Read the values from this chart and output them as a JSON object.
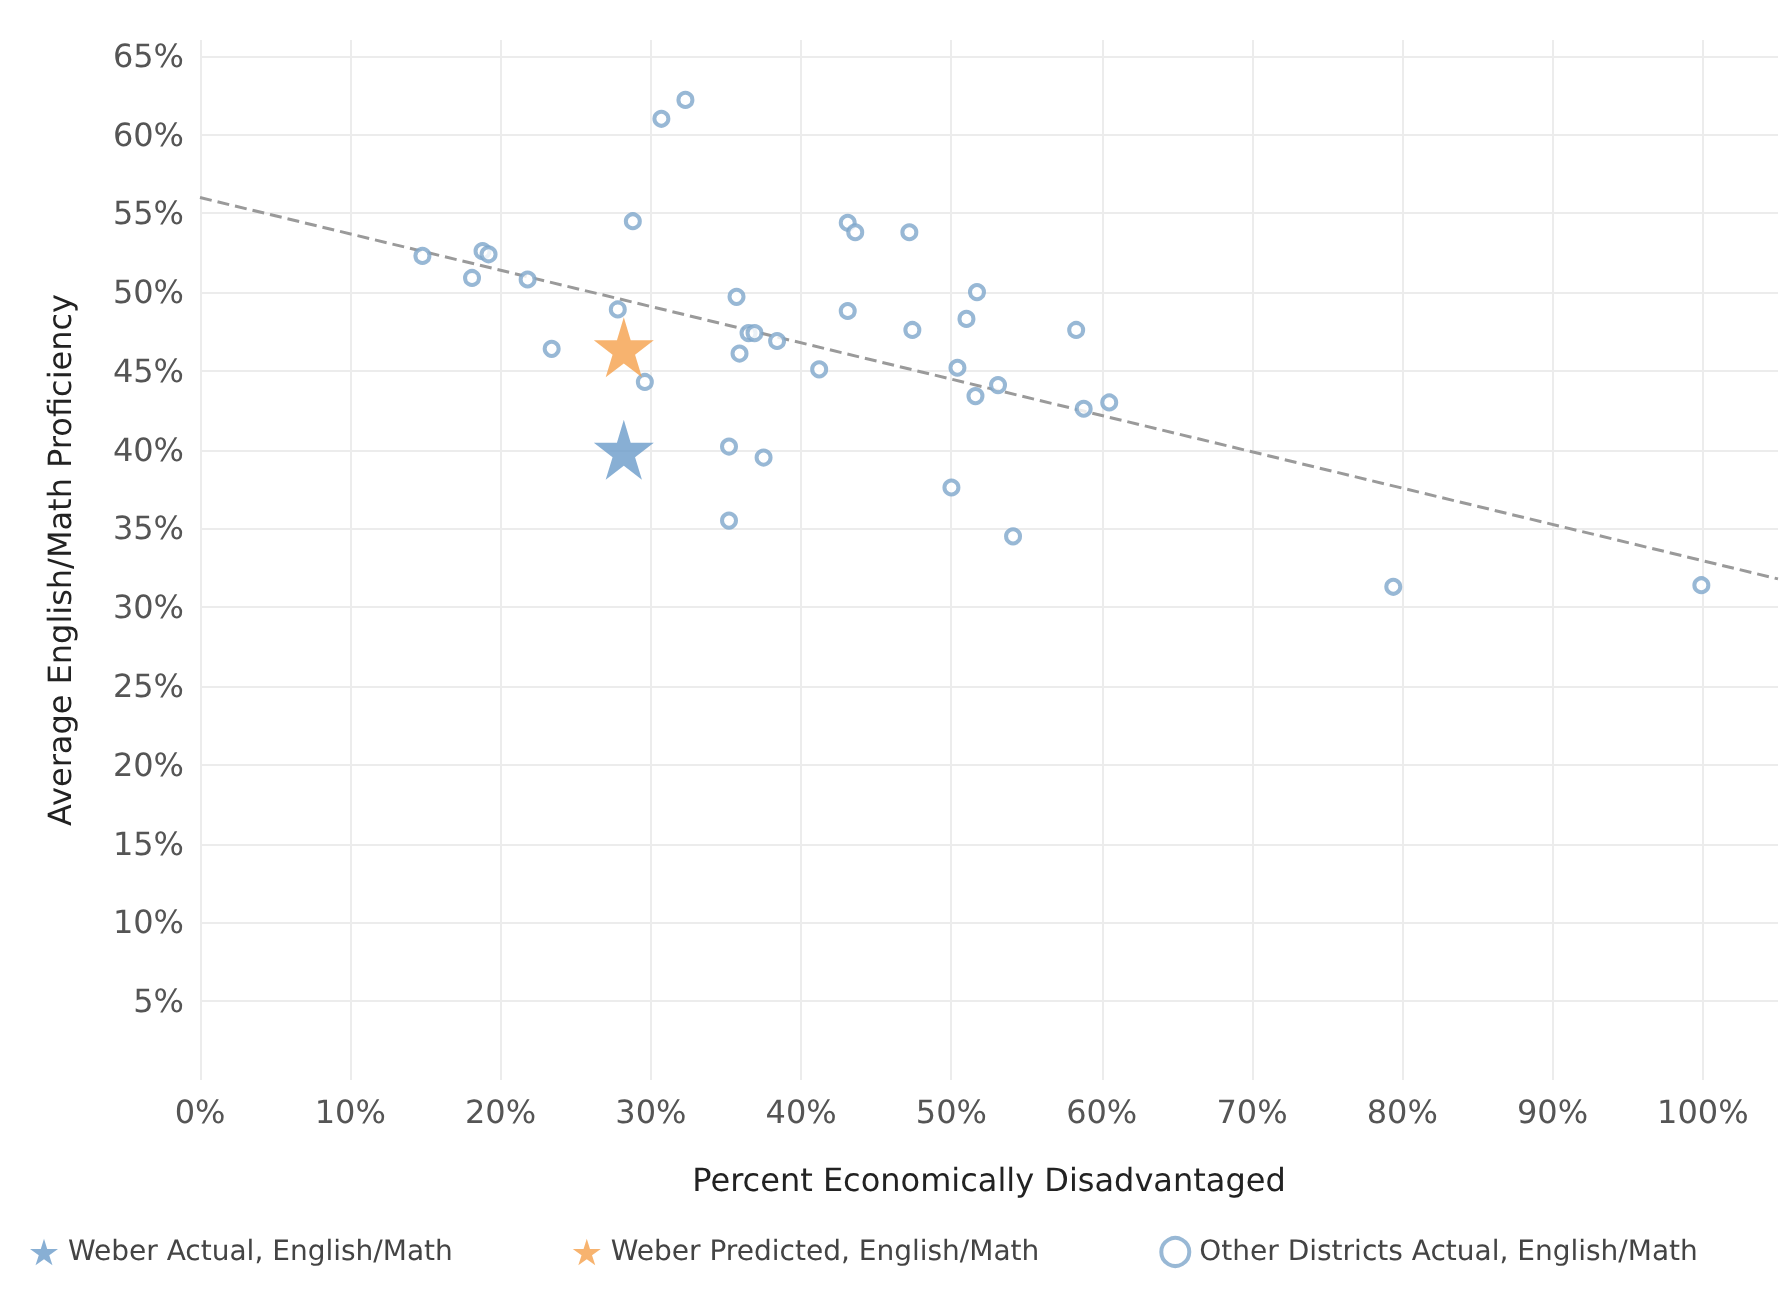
{
  "chart_data": {
    "type": "scatter",
    "xlabel": "Percent Economically Disadvantaged",
    "ylabel": "Average English/Math Proficiency",
    "xlim": [
      0,
      105
    ],
    "ylim": [
      0,
      66
    ],
    "xticks": [
      {
        "value": 0,
        "label": "0%"
      },
      {
        "value": 10,
        "label": "10%"
      },
      {
        "value": 20,
        "label": "20%"
      },
      {
        "value": 30,
        "label": "30%"
      },
      {
        "value": 40,
        "label": "40%"
      },
      {
        "value": 50,
        "label": "50%"
      },
      {
        "value": 60,
        "label": "60%"
      },
      {
        "value": 70,
        "label": "70%"
      },
      {
        "value": 80,
        "label": "80%"
      },
      {
        "value": 90,
        "label": "90%"
      },
      {
        "value": 100,
        "label": "100%"
      }
    ],
    "yticks": [
      {
        "value": 5,
        "label": "5%"
      },
      {
        "value": 10,
        "label": "10%"
      },
      {
        "value": 15,
        "label": "15%"
      },
      {
        "value": 20,
        "label": "20%"
      },
      {
        "value": 25,
        "label": "25%"
      },
      {
        "value": 30,
        "label": "30%"
      },
      {
        "value": 35,
        "label": "35%"
      },
      {
        "value": 40,
        "label": "40%"
      },
      {
        "value": 45,
        "label": "45%"
      },
      {
        "value": 50,
        "label": "50%"
      },
      {
        "value": 55,
        "label": "55%"
      },
      {
        "value": 60,
        "label": "60%"
      },
      {
        "value": 65,
        "label": "65%"
      }
    ],
    "grid": true,
    "legend": "bottom",
    "series": [
      {
        "name": "Weber Actual, English/Math",
        "color": "#6a9bc9",
        "marker": "star",
        "x": [
          28.2
        ],
        "values": [
          40.0
        ]
      },
      {
        "name": "Weber Predicted, English/Math",
        "color": "#f5a04b",
        "marker": "star",
        "x": [
          28.2
        ],
        "values": [
          46.5
        ]
      },
      {
        "name": "Other Districts Actual, English/Math",
        "color": "#7ea6ca",
        "marker": "circle",
        "x": [
          14.8,
          18.1,
          18.8,
          19.2,
          21.8,
          23.4,
          27.8,
          28.8,
          29.6,
          30.7,
          32.3,
          35.7,
          35.2,
          37.5,
          35.2,
          35.9,
          36.5,
          36.9,
          38.4,
          41.2,
          43.1,
          43.6,
          43.1,
          47.2,
          47.4,
          51.7,
          51.0,
          50.4,
          53.1,
          51.6,
          58.3,
          58.8,
          60.5,
          50.0,
          54.1,
          79.4,
          99.9
        ],
        "values": [
          52.3,
          50.9,
          52.6,
          52.4,
          50.8,
          46.4,
          48.9,
          54.5,
          44.3,
          61.0,
          62.2,
          49.7,
          40.2,
          39.5,
          35.5,
          46.1,
          47.4,
          47.4,
          46.9,
          45.1,
          54.4,
          53.8,
          48.8,
          53.8,
          47.6,
          50.0,
          48.3,
          45.2,
          44.1,
          43.4,
          47.6,
          42.6,
          43.0,
          37.6,
          34.5,
          31.3,
          31.4
        ]
      },
      {
        "type": "line",
        "color": "#9a9a9a",
        "marker": "none",
        "line_style": "dashed",
        "x": [
          0,
          105
        ],
        "values": [
          56.0,
          31.8
        ]
      }
    ]
  }
}
